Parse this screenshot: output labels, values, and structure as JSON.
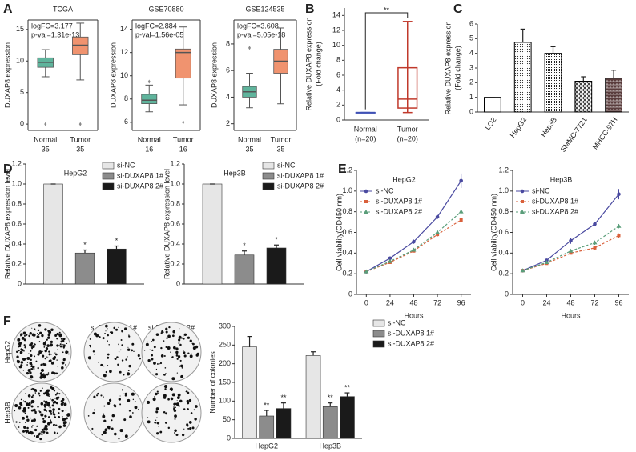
{
  "panel_labels": [
    "A",
    "B",
    "C",
    "D",
    "E",
    "F"
  ],
  "colony_assay": {
    "columns": [
      "si-NC",
      "si-DUXAP8 1#",
      "si-DUXAP8 2#"
    ],
    "rows": [
      "HepG2",
      "Hep3B"
    ]
  },
  "chart_data": [
    {
      "type": "box",
      "title": "TCGA",
      "ylabel": [
        "DUXAP8 expression"
      ],
      "categories": [
        "Normal",
        "Tumor"
      ],
      "category_sublabels": [
        "35",
        "35"
      ],
      "annotations": [
        "logFC=3.177",
        "p-val=1.31e-13"
      ],
      "ylim": [
        -1,
        16.5
      ],
      "yticks": [
        0,
        5,
        10,
        15
      ],
      "boxes": [
        {
          "min": 7.5,
          "q1": 9,
          "median": 9.8,
          "q3": 10.5,
          "max": 11.8,
          "outliers": [
            0
          ]
        },
        {
          "min": 7,
          "q1": 11,
          "median": 12.5,
          "q3": 13.8,
          "max": 16,
          "outliers": [
            0
          ]
        }
      ],
      "colors": [
        "#5fb49c",
        "#f0936f"
      ]
    },
    {
      "type": "box",
      "title": "GSE70880",
      "ylabel": [
        "DUXAP8 expression"
      ],
      "categories": [
        "Normal",
        "Tumor"
      ],
      "category_sublabels": [
        "16",
        "16"
      ],
      "annotations": [
        "logFC=2.884",
        "p-val=1.56e-05"
      ],
      "ylim": [
        5.3,
        14.8
      ],
      "yticks": [
        6,
        8,
        10,
        12,
        14
      ],
      "boxes": [
        {
          "min": 6.9,
          "q1": 7.6,
          "median": 7.9,
          "q3": 8.4,
          "max": 9.2,
          "outliers": [
            9.5
          ]
        },
        {
          "min": 7.5,
          "q1": 9.8,
          "median": 12,
          "q3": 12.3,
          "max": 14.2,
          "outliers": [
            6
          ]
        }
      ],
      "colors": [
        "#5fb49c",
        "#f0936f"
      ]
    },
    {
      "type": "box",
      "title": "GSE124535",
      "ylabel": [
        "DUXAP8 expression"
      ],
      "categories": [
        "Normal",
        "Tumor"
      ],
      "category_sublabels": [
        "35",
        "35"
      ],
      "annotations": [
        "logFC=3.608",
        "p-val=5.05e-18"
      ],
      "ylim": [
        1.5,
        9.8
      ],
      "yticks": [
        2,
        4,
        6,
        8
      ],
      "boxes": [
        {
          "min": 3.2,
          "q1": 4,
          "median": 4.4,
          "q3": 4.8,
          "max": 5.8,
          "outliers": [
            7.7
          ]
        },
        {
          "min": 3.5,
          "q1": 5.8,
          "median": 6.7,
          "q3": 7.6,
          "max": 9.2,
          "outliers": []
        }
      ],
      "colors": [
        "#5fb49c",
        "#f0936f"
      ]
    },
    {
      "type": "box",
      "ylabel": [
        "Relative DUXAP8 expression",
        "(Fold change)"
      ],
      "categories": [
        "Normal",
        "Tumor"
      ],
      "category_sublabels": [
        "(n=20)",
        "(n=20)"
      ],
      "significance": "**",
      "filled": false,
      "ylim": [
        0,
        15
      ],
      "yticks": [
        0,
        2,
        4,
        6,
        8,
        10,
        12,
        14
      ],
      "boxes": [
        {
          "min": 1,
          "q1": 1,
          "median": 1,
          "q3": 1,
          "max": 1,
          "outliers": []
        },
        {
          "min": 1,
          "q1": 1.6,
          "median": 2.8,
          "q3": 7,
          "max": 13.2,
          "outliers": []
        }
      ],
      "colors": [
        "#3f51b5",
        "#c0392b"
      ]
    },
    {
      "type": "bar",
      "ylabel": [
        "Relative DUXAP8 expression",
        "(Fold change)"
      ],
      "categories": [
        "LO2",
        "HepG2",
        "Hep3B",
        "SMMC-7721",
        "MHCC-97H"
      ],
      "values": [
        1,
        4.75,
        4.0,
        2.1,
        2.3
      ],
      "errors": [
        0,
        0.9,
        0.45,
        0.3,
        0.55
      ],
      "color": "#000000",
      "ylim": [
        0,
        6
      ],
      "yticks": [
        0,
        1,
        2,
        3,
        4,
        5,
        6
      ]
    },
    {
      "type": "bar",
      "title": "HepG2",
      "ylabel": [
        "Relative DUXAP8 expression level"
      ],
      "categories": [
        null
      ],
      "legend": "upper right",
      "series": [
        {
          "name": "si-NC",
          "color": "#e6e6e6",
          "values": [
            1
          ],
          "errors": [
            0
          ],
          "significance": [
            null
          ]
        },
        {
          "name": "si-DUXAP8 1#",
          "color": "#8c8c8c",
          "values": [
            0.31
          ],
          "errors": [
            0.03
          ],
          "significance": [
            "*"
          ]
        },
        {
          "name": "si-DUXAP8 2#",
          "color": "#1a1a1a",
          "values": [
            0.35
          ],
          "errors": [
            0.03
          ],
          "significance": [
            "*"
          ]
        }
      ],
      "ylim": [
        0,
        1.2
      ],
      "yticks": [
        0,
        0.2,
        0.4,
        0.6,
        0.8,
        {
          "value": 1,
          "label": "1.0"
        },
        1.2
      ]
    },
    {
      "type": "bar",
      "title": "Hep3B",
      "ylabel": [
        "Relative DUXAP8 expression level"
      ],
      "categories": [
        null
      ],
      "legend": "upper right",
      "series": [
        {
          "name": "si-NC",
          "color": "#e6e6e6",
          "values": [
            1
          ],
          "errors": [
            0
          ],
          "significance": [
            null
          ]
        },
        {
          "name": "si-DUXAP8 1#",
          "color": "#8c8c8c",
          "values": [
            0.29
          ],
          "errors": [
            0.04
          ],
          "significance": [
            "*"
          ]
        },
        {
          "name": "si-DUXAP8 2#",
          "color": "#1a1a1a",
          "values": [
            0.36
          ],
          "errors": [
            0.03
          ],
          "significance": [
            "*"
          ]
        }
      ],
      "ylim": [
        0,
        1.2
      ],
      "yticks": [
        0,
        0.2,
        0.4,
        0.6,
        0.8,
        {
          "value": 1,
          "label": "1.0"
        },
        1.2
      ]
    },
    {
      "type": "line",
      "title": "HepG2",
      "xlabel": "Hours",
      "ylabel": [
        "Cell viability(OD450 nm)"
      ],
      "legend": "upper left",
      "x": [
        0,
        24,
        48,
        72,
        96
      ],
      "xlim": [
        -10,
        106
      ],
      "xticks": [
        0,
        24,
        48,
        72,
        96
      ],
      "ylim": [
        0,
        1.2
      ],
      "yticks": [
        0,
        0.2,
        0.4,
        0.6,
        0.8,
        {
          "value": 1,
          "label": "1.0"
        },
        1.2
      ],
      "series": [
        {
          "name": "si-NC",
          "color": "#4a4aa0",
          "dash": false,
          "marker": "circle",
          "values": [
            0.22,
            0.35,
            0.51,
            0.75,
            1.1
          ],
          "errors": [
            0.01,
            0.01,
            0.02,
            0.02,
            0.07
          ]
        },
        {
          "name": "si-DUXAP8 1#",
          "color": "#d9603b",
          "dash": true,
          "marker": "square",
          "values": [
            0.22,
            0.31,
            0.42,
            0.58,
            0.72
          ],
          "errors": [
            0.01,
            0.01,
            0.01,
            0.02,
            0.02
          ]
        },
        {
          "name": "si-DUXAP8 2#",
          "color": "#5a9e7a",
          "dash": true,
          "marker": "triangle",
          "values": [
            0.22,
            0.32,
            0.43,
            0.6,
            0.8
          ],
          "errors": [
            0.01,
            0.01,
            0.01,
            0.02,
            0.02
          ]
        }
      ]
    },
    {
      "type": "line",
      "title": "Hep3B",
      "xlabel": "Hours",
      "ylabel": [
        "Cell viability(OD450 nm)"
      ],
      "legend": "upper left",
      "x": [
        0,
        24,
        48,
        72,
        96
      ],
      "xlim": [
        -10,
        106
      ],
      "xticks": [
        0,
        24,
        48,
        72,
        96
      ],
      "ylim": [
        0,
        1.2
      ],
      "yticks": [
        0,
        0.2,
        0.4,
        0.6,
        0.8,
        {
          "value": 1,
          "label": "1.0"
        },
        1.2
      ],
      "series": [
        {
          "name": "si-NC",
          "color": "#4a4aa0",
          "dash": false,
          "marker": "circle",
          "values": [
            0.23,
            0.33,
            0.52,
            0.68,
            0.97
          ],
          "errors": [
            0.01,
            0.01,
            0.03,
            0.02,
            0.05
          ]
        },
        {
          "name": "si-DUXAP8 1#",
          "color": "#d9603b",
          "dash": true,
          "marker": "square",
          "values": [
            0.23,
            0.3,
            0.4,
            0.45,
            0.57
          ],
          "errors": [
            0.01,
            0.01,
            0.01,
            0.02,
            0.02
          ]
        },
        {
          "name": "si-DUXAP8 2#",
          "color": "#5a9e7a",
          "dash": true,
          "marker": "triangle",
          "values": [
            0.23,
            0.31,
            0.42,
            0.5,
            0.66
          ],
          "errors": [
            0.01,
            0.01,
            0.01,
            0.02,
            0.02
          ]
        }
      ]
    },
    {
      "type": "bar",
      "ylabel": [
        "Number of colonies"
      ],
      "categories": [
        "HepG2",
        "Hep3B"
      ],
      "legend": "right",
      "series": [
        {
          "name": "si-NC",
          "color": "#e6e6e6",
          "values": [
            245,
            222
          ],
          "errors": [
            28,
            10
          ],
          "significance": [
            null,
            null
          ]
        },
        {
          "name": "si-DUXAP8 1#",
          "color": "#8c8c8c",
          "values": [
            60,
            85
          ],
          "errors": [
            15,
            10
          ],
          "significance": [
            "**",
            "**"
          ]
        },
        {
          "name": "si-DUXAP8 2#",
          "color": "#1a1a1a",
          "values": [
            80,
            112
          ],
          "errors": [
            15,
            10
          ],
          "significance": [
            "**",
            "**"
          ]
        }
      ],
      "ylim": [
        0,
        300
      ],
      "yticks": [
        0,
        50,
        100,
        150,
        200,
        250,
        300
      ]
    }
  ]
}
